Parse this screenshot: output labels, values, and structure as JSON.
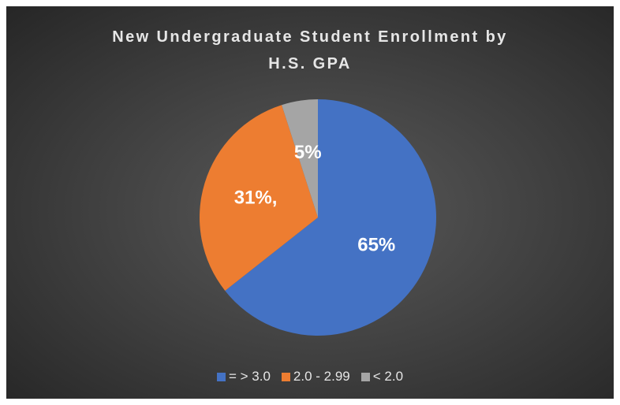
{
  "chart_data": {
    "type": "pie",
    "title": "New Undergraduate Student Enrollment by H.S. GPA",
    "categories": [
      "= > 3.0",
      "2.0 - 2.99",
      "< 2.0"
    ],
    "values": [
      65,
      31,
      5
    ],
    "value_labels": [
      "65%",
      "31%,",
      "5%"
    ],
    "colors": [
      "#4472c4",
      "#ed7d31",
      "#a5a5a5"
    ],
    "legend": "bottom"
  }
}
